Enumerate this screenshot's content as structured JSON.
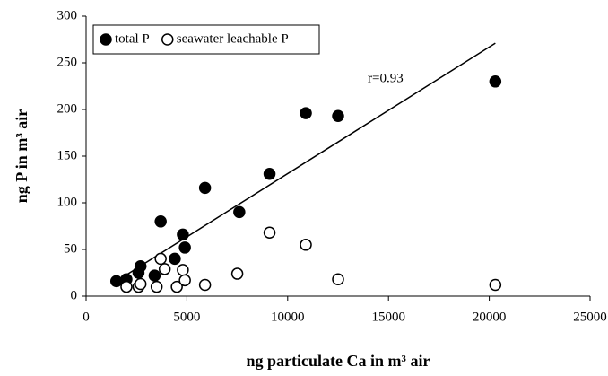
{
  "chart_data": {
    "type": "scatter",
    "x_label": "ng particulate Ca in m³ air",
    "y_label": "ng P in m³ air",
    "annotation": "r=0.93",
    "series": [
      {
        "name": "total P",
        "color": "#000000",
        "filled": true,
        "x": [
          1500,
          2000,
          2600,
          2700,
          3400,
          3700,
          4400,
          4800,
          4900,
          5900,
          7600,
          9100,
          10900,
          12500,
          20300
        ],
        "values": [
          16,
          18,
          25,
          32,
          22,
          80,
          40,
          66,
          52,
          116,
          90,
          131,
          196,
          193,
          230
        ]
      },
      {
        "name": "seawater leachable P",
        "color": "#000000",
        "filled": false,
        "x": [
          2000,
          2600,
          2700,
          3500,
          3700,
          3900,
          4500,
          4800,
          4900,
          5900,
          7500,
          9100,
          10900,
          12500,
          20300
        ],
        "values": [
          10,
          10,
          13,
          10,
          40,
          29,
          10,
          28,
          17,
          12,
          24,
          68,
          55,
          18,
          12
        ]
      }
    ],
    "trendline": {
      "x": [
        1500,
        20300
      ],
      "values": [
        16,
        271
      ]
    },
    "xlim": [
      0,
      25000
    ],
    "xticks": [
      0,
      5000,
      10000,
      15000,
      20000,
      25000
    ],
    "ylim": [
      0,
      300
    ],
    "yticks": [
      0,
      50,
      100,
      150,
      200,
      250,
      300
    ],
    "grid": false,
    "legend": "upper left"
  }
}
